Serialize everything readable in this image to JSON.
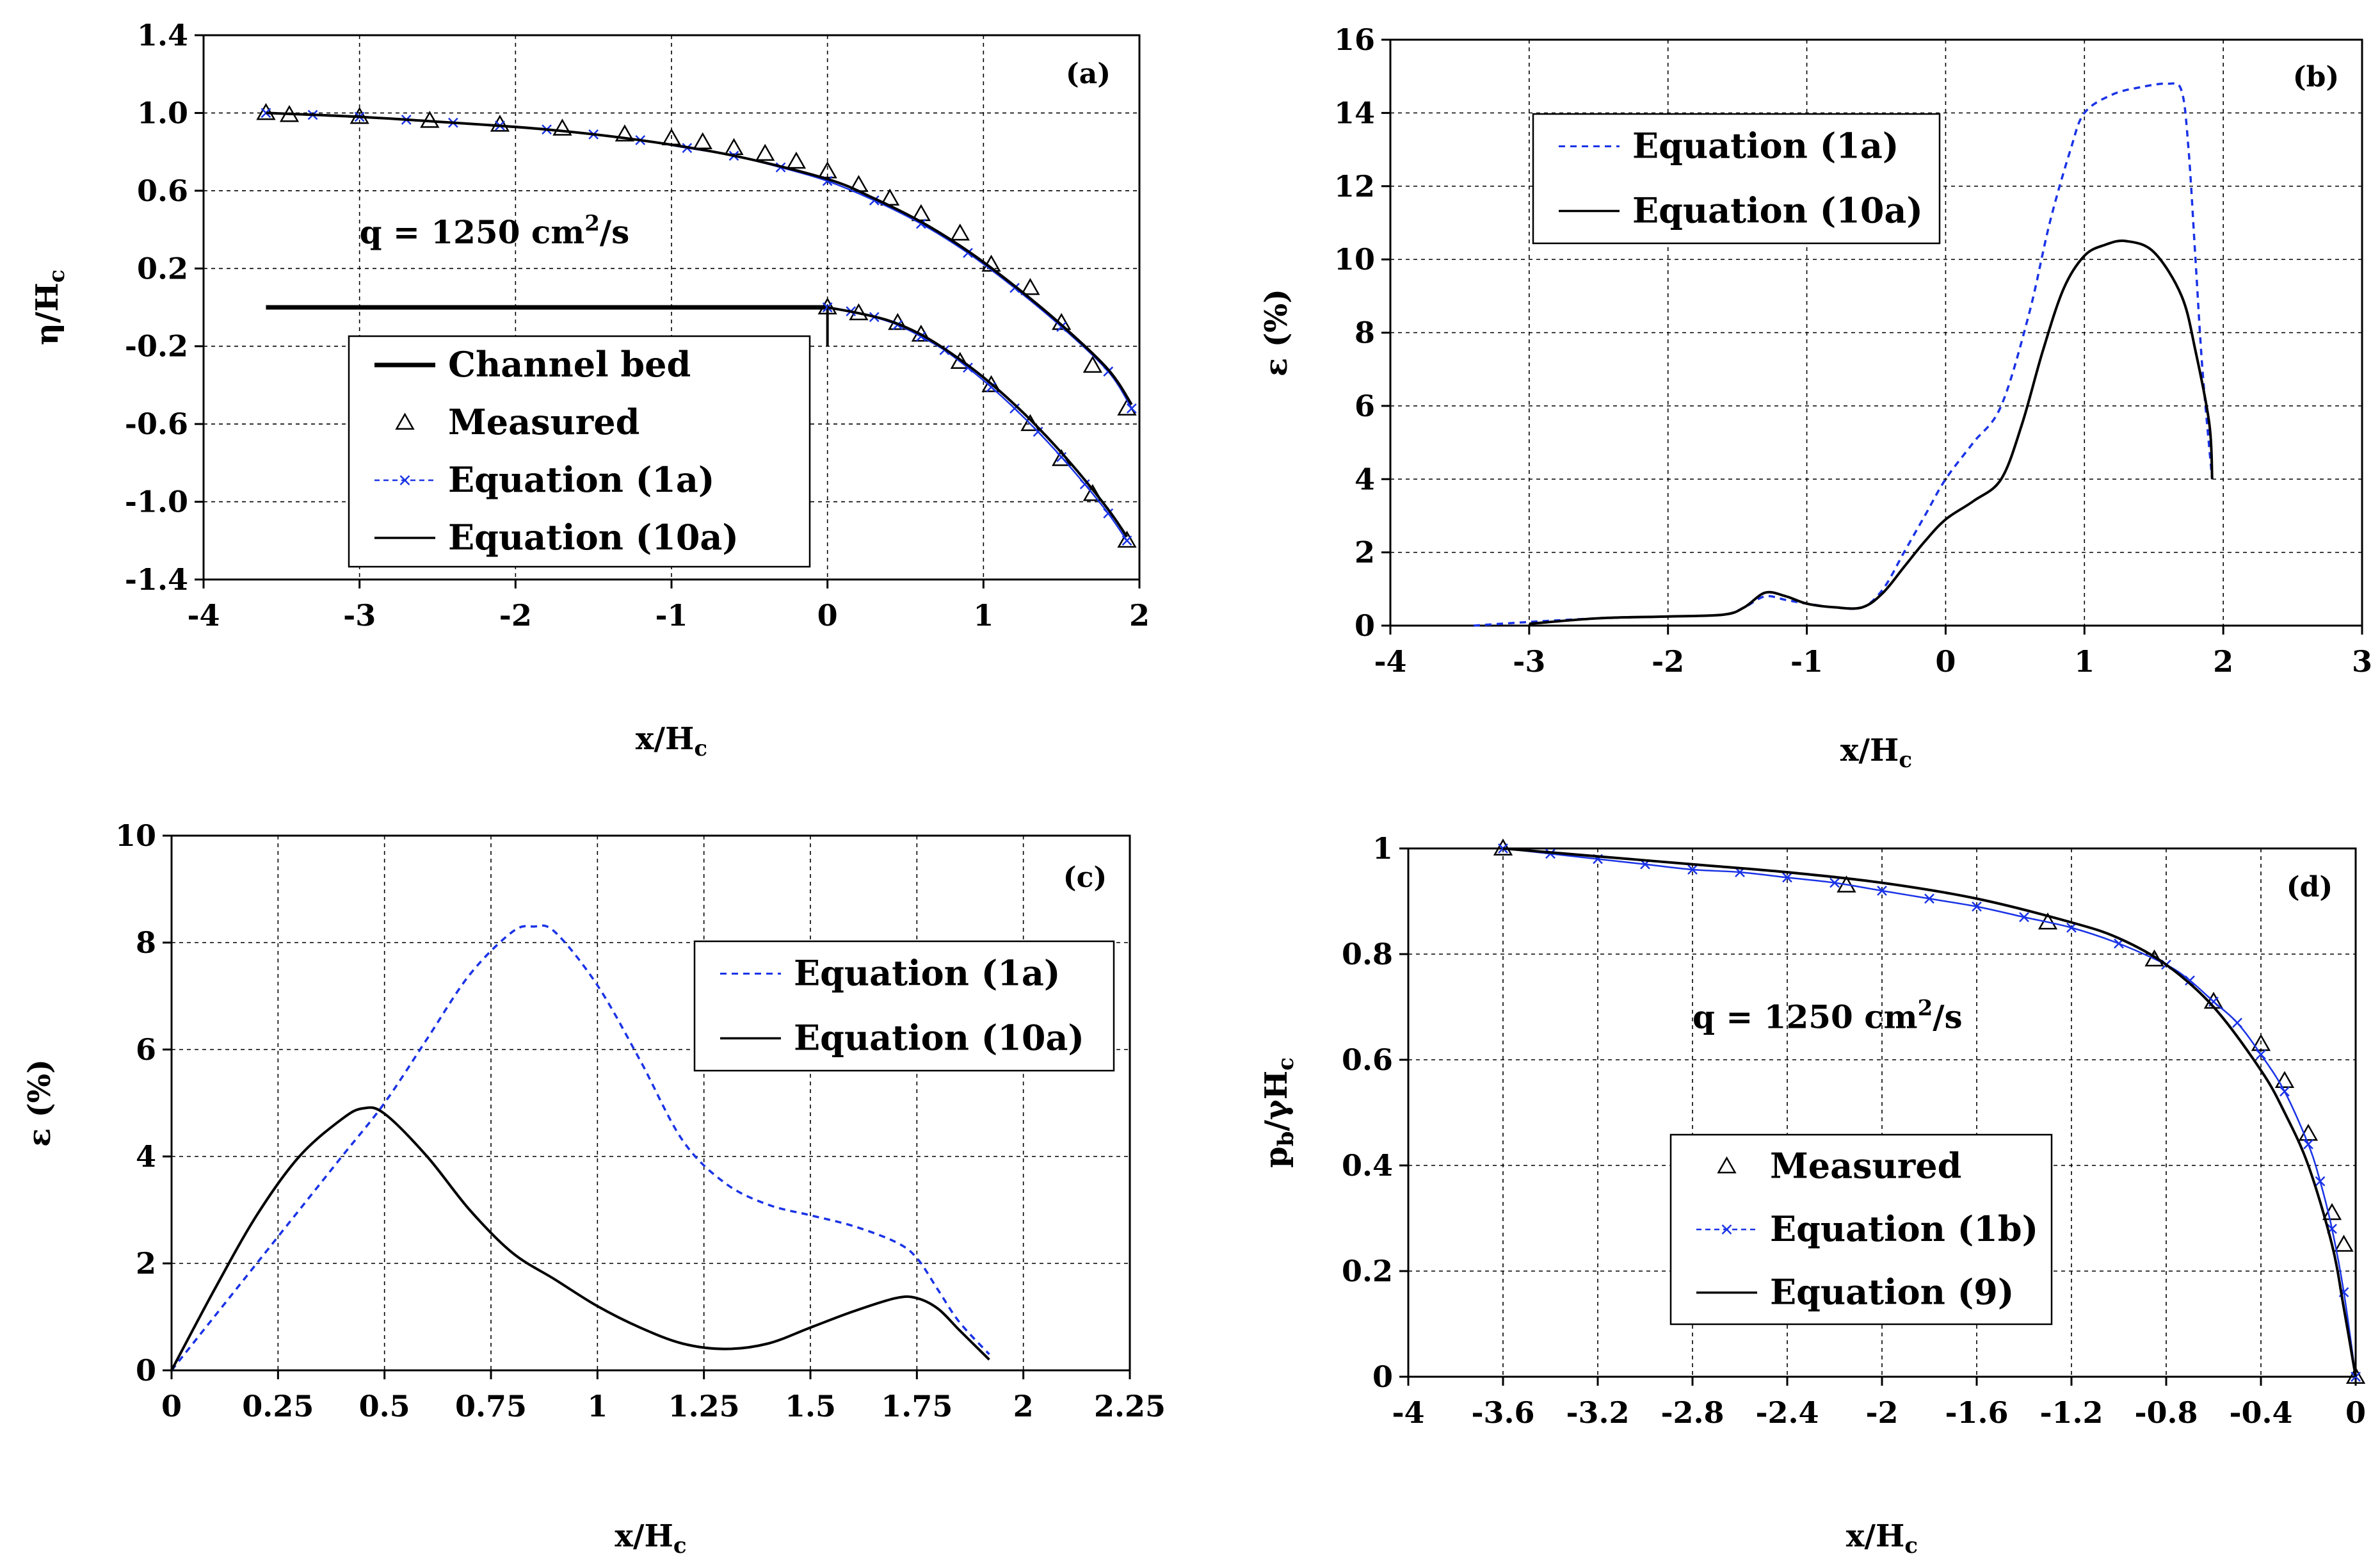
{
  "chart_data": [
    {
      "id": "a",
      "type": "line",
      "panel_label": "(a)",
      "xlabel": "x/H",
      "xlabel_sub": "c",
      "ylabel": "η/H",
      "ylabel_sub": "c",
      "xlim": [
        -4,
        2
      ],
      "ylim": [
        -1.4,
        1.4
      ],
      "xticks": [
        -4,
        -3,
        -2,
        -1,
        0,
        1,
        2
      ],
      "yticks": [
        -1.4,
        -1.0,
        -0.6,
        -0.2,
        0.2,
        0.6,
        1.0,
        1.4
      ],
      "ytick_labels": [
        "-1.4",
        "-1.0",
        "-0.6",
        "-0.2",
        "0.2",
        "0.6",
        "1.0",
        "1.4"
      ],
      "annotation": {
        "text": "q = 1250 cm",
        "sup": "2",
        "tail": "/s",
        "x": -3.0,
        "y": 0.33
      },
      "legend": [
        {
          "label": "Channel bed",
          "style": "bed"
        },
        {
          "label": "Measured",
          "style": "triangle"
        },
        {
          "label": "Equation (1a)",
          "style": "blue-x"
        },
        {
          "label": "Equation (10a)",
          "style": "black-line"
        }
      ],
      "series": [
        {
          "name": "Channel bed",
          "style": "bed",
          "x": [
            -3.6,
            0
          ],
          "y": [
            0,
            0
          ]
        },
        {
          "name": "Channel bed step",
          "style": "bed-thin",
          "x": [
            0,
            0
          ],
          "y": [
            0,
            -0.2
          ]
        },
        {
          "name": "Measured (upper nappe)",
          "style": "triangle",
          "x": [
            -3.6,
            -3.45,
            -3.0,
            -2.55,
            -2.1,
            -1.7,
            -1.3,
            -1.0,
            -0.8,
            -0.6,
            -0.4,
            -0.2,
            0.0,
            0.2,
            0.4,
            0.6,
            0.85,
            1.05,
            1.3,
            1.5,
            1.7,
            1.92
          ],
          "y": [
            1.0,
            0.99,
            0.98,
            0.96,
            0.94,
            0.92,
            0.89,
            0.87,
            0.85,
            0.82,
            0.79,
            0.75,
            0.7,
            0.63,
            0.56,
            0.48,
            0.38,
            0.22,
            0.1,
            -0.08,
            -0.3,
            -0.52
          ]
        },
        {
          "name": "Equation (1a) (upper nappe)",
          "style": "blue-x",
          "x": [
            -3.6,
            -3.3,
            -3.0,
            -2.7,
            -2.4,
            -2.1,
            -1.8,
            -1.5,
            -1.2,
            -0.9,
            -0.6,
            -0.3,
            0.0,
            0.3,
            0.6,
            0.9,
            1.2,
            1.5,
            1.8,
            1.95
          ],
          "y": [
            1.0,
            0.99,
            0.98,
            0.965,
            0.95,
            0.935,
            0.915,
            0.89,
            0.86,
            0.82,
            0.78,
            0.72,
            0.65,
            0.55,
            0.43,
            0.28,
            0.1,
            -0.1,
            -0.33,
            -0.52
          ]
        },
        {
          "name": "Equation (10a) (upper nappe)",
          "style": "black-line",
          "x": [
            -3.6,
            -3.0,
            -2.4,
            -1.8,
            -1.2,
            -0.6,
            0.0,
            0.3,
            0.6,
            0.9,
            1.2,
            1.5,
            1.8,
            1.95
          ],
          "y": [
            1.0,
            0.98,
            0.95,
            0.915,
            0.86,
            0.78,
            0.66,
            0.56,
            0.44,
            0.29,
            0.11,
            -0.09,
            -0.32,
            -0.5
          ]
        },
        {
          "name": "Measured (lower nappe)",
          "style": "triangle",
          "x": [
            0.0,
            0.2,
            0.45,
            0.6,
            0.85,
            1.05,
            1.3,
            1.5,
            1.7,
            1.92
          ],
          "y": [
            0.0,
            -0.03,
            -0.08,
            -0.14,
            -0.28,
            -0.4,
            -0.6,
            -0.78,
            -0.96,
            -1.2
          ]
        },
        {
          "name": "Equation (1a) (lower nappe)",
          "style": "blue-x",
          "x": [
            0.0,
            0.15,
            0.3,
            0.45,
            0.6,
            0.75,
            0.9,
            1.05,
            1.2,
            1.35,
            1.5,
            1.65,
            1.8,
            1.92
          ],
          "y": [
            0.0,
            -0.02,
            -0.05,
            -0.09,
            -0.15,
            -0.22,
            -0.31,
            -0.41,
            -0.52,
            -0.64,
            -0.77,
            -0.91,
            -1.06,
            -1.2
          ]
        },
        {
          "name": "Equation (10a) (lower nappe)",
          "style": "black-line",
          "x": [
            0.0,
            0.2,
            0.4,
            0.6,
            0.8,
            1.0,
            1.2,
            1.4,
            1.6,
            1.8,
            1.92
          ],
          "y": [
            0.0,
            -0.03,
            -0.07,
            -0.14,
            -0.24,
            -0.36,
            -0.5,
            -0.66,
            -0.84,
            -1.04,
            -1.18
          ]
        }
      ]
    },
    {
      "id": "b",
      "type": "line",
      "panel_label": "(b)",
      "xlabel": "x/H",
      "xlabel_sub": "c",
      "ylabel": "ε (%)",
      "xlim": [
        -4,
        3
      ],
      "ylim": [
        0,
        16
      ],
      "xticks": [
        -4,
        -3,
        -2,
        -1,
        0,
        1,
        2,
        3
      ],
      "yticks": [
        0,
        2,
        4,
        6,
        8,
        10,
        12,
        14,
        16
      ],
      "ytick_labels": [
        "0",
        "2",
        "4",
        "6",
        "8",
        "10",
        "12",
        "14",
        "16"
      ],
      "legend": [
        {
          "label": "Equation (1a)",
          "style": "blue-dash"
        },
        {
          "label": "Equation (10a)",
          "style": "black-line"
        }
      ],
      "series": [
        {
          "name": "Equation (1a)",
          "style": "blue-dash",
          "x": [
            -3.4,
            -3.0,
            -2.5,
            -2.0,
            -1.6,
            -1.45,
            -1.3,
            -1.15,
            -1.0,
            -0.8,
            -0.6,
            -0.45,
            -0.3,
            -0.15,
            0.0,
            0.2,
            0.4,
            0.6,
            0.75,
            0.9,
            1.0,
            1.2,
            1.4,
            1.6,
            1.7,
            1.75,
            1.8,
            1.85,
            1.92
          ],
          "y": [
            0.0,
            0.1,
            0.2,
            0.25,
            0.3,
            0.5,
            0.8,
            0.7,
            0.6,
            0.5,
            0.5,
            1.0,
            2.0,
            3.0,
            4.0,
            5.0,
            6.0,
            8.5,
            11.0,
            13.0,
            14.0,
            14.5,
            14.7,
            14.8,
            14.6,
            13.0,
            10.0,
            7.0,
            4.0
          ]
        },
        {
          "name": "Equation (10a)",
          "style": "black-line",
          "x": [
            -3.0,
            -2.5,
            -2.0,
            -1.6,
            -1.45,
            -1.3,
            -1.15,
            -1.0,
            -0.8,
            -0.6,
            -0.45,
            -0.3,
            -0.15,
            0.0,
            0.2,
            0.4,
            0.55,
            0.7,
            0.85,
            1.0,
            1.15,
            1.3,
            1.5,
            1.7,
            1.8,
            1.9,
            1.92
          ],
          "y": [
            0.05,
            0.2,
            0.25,
            0.3,
            0.5,
            0.9,
            0.8,
            0.6,
            0.5,
            0.5,
            0.9,
            1.6,
            2.3,
            2.9,
            3.4,
            4.0,
            5.5,
            7.5,
            9.2,
            10.1,
            10.4,
            10.5,
            10.2,
            9.0,
            7.5,
            5.5,
            4.0
          ]
        }
      ]
    },
    {
      "id": "c",
      "type": "line",
      "panel_label": "(c)",
      "xlabel": "x/H",
      "xlabel_sub": "c",
      "ylabel": "ε (%)",
      "xlim": [
        0,
        2.25
      ],
      "ylim": [
        0,
        10
      ],
      "xticks": [
        0,
        0.25,
        0.5,
        0.75,
        1,
        1.25,
        1.5,
        1.75,
        2,
        2.25
      ],
      "xtick_labels": [
        "0",
        "0.25",
        "0.5",
        "0.75",
        "1",
        "1.25",
        "1.5",
        "1.75",
        "2",
        "2.25"
      ],
      "yticks": [
        0,
        2,
        4,
        6,
        8,
        10
      ],
      "ytick_labels": [
        "0",
        "2",
        "4",
        "6",
        "8",
        "10"
      ],
      "legend": [
        {
          "label": "Equation (1a)",
          "style": "blue-dash"
        },
        {
          "label": "Equation (10a)",
          "style": "black-line"
        }
      ],
      "series": [
        {
          "name": "Equation (1a)",
          "style": "blue-dash",
          "x": [
            0.0,
            0.1,
            0.2,
            0.3,
            0.4,
            0.5,
            0.6,
            0.7,
            0.8,
            0.85,
            0.9,
            1.0,
            1.1,
            1.2,
            1.3,
            1.4,
            1.5,
            1.6,
            1.7,
            1.75,
            1.8,
            1.85,
            1.92
          ],
          "y": [
            0.0,
            1.0,
            2.0,
            3.0,
            4.0,
            5.0,
            6.2,
            7.4,
            8.2,
            8.3,
            8.2,
            7.2,
            5.8,
            4.3,
            3.5,
            3.1,
            2.9,
            2.7,
            2.4,
            2.1,
            1.5,
            0.9,
            0.3
          ]
        },
        {
          "name": "Equation (10a)",
          "style": "black-line",
          "x": [
            0.0,
            0.1,
            0.2,
            0.3,
            0.4,
            0.45,
            0.5,
            0.6,
            0.7,
            0.8,
            0.9,
            1.0,
            1.1,
            1.2,
            1.3,
            1.4,
            1.5,
            1.6,
            1.7,
            1.75,
            1.8,
            1.85,
            1.92
          ],
          "y": [
            0.0,
            1.5,
            2.9,
            4.0,
            4.7,
            4.9,
            4.8,
            4.0,
            3.0,
            2.2,
            1.7,
            1.2,
            0.8,
            0.5,
            0.4,
            0.5,
            0.8,
            1.1,
            1.35,
            1.35,
            1.15,
            0.75,
            0.2
          ]
        }
      ]
    },
    {
      "id": "d",
      "type": "line",
      "panel_label": "(d)",
      "xlabel": "x/H",
      "xlabel_sub": "c",
      "ylabel": "p",
      "ylabel_sub": "b",
      "ylabel_tail": "/γH",
      "ylabel_sub2": "c",
      "xlim": [
        -4,
        0
      ],
      "ylim": [
        0,
        1
      ],
      "xticks": [
        -4,
        -3.6,
        -3.2,
        -2.8,
        -2.4,
        -2,
        -1.6,
        -1.2,
        -0.8,
        -0.4,
        0
      ],
      "xtick_labels": [
        "-4",
        "-3.6",
        "-3.2",
        "-2.8",
        "-2.4",
        "-2",
        "-1.6",
        "-1.2",
        "-0.8",
        "-0.4",
        "0"
      ],
      "yticks": [
        0,
        0.2,
        0.4,
        0.6,
        0.8,
        1
      ],
      "ytick_labels": [
        "0",
        "0.2",
        "0.4",
        "0.6",
        "0.8",
        "1"
      ],
      "annotation": {
        "text": "q = 1250 cm",
        "sup": "2",
        "tail": "/s",
        "x": -2.8,
        "y": 0.66
      },
      "legend": [
        {
          "label": "Measured",
          "style": "triangle"
        },
        {
          "label": "Equation (1b)",
          "style": "blue-x"
        },
        {
          "label": "Equation (9)",
          "style": "black-line"
        }
      ],
      "series": [
        {
          "name": "Measured",
          "style": "triangle",
          "x": [
            -3.6,
            -2.15,
            -1.3,
            -0.85,
            -0.6,
            -0.4,
            -0.3,
            -0.2,
            -0.1,
            -0.05,
            0.0
          ],
          "y": [
            1.0,
            0.93,
            0.86,
            0.79,
            0.71,
            0.63,
            0.56,
            0.46,
            0.31,
            0.25,
            0.0
          ]
        },
        {
          "name": "Equation (1b)",
          "style": "blue-x",
          "x": [
            -3.6,
            -3.4,
            -3.2,
            -3.0,
            -2.8,
            -2.6,
            -2.4,
            -2.2,
            -2.0,
            -1.8,
            -1.6,
            -1.4,
            -1.2,
            -1.0,
            -0.8,
            -0.7,
            -0.6,
            -0.5,
            -0.4,
            -0.3,
            -0.2,
            -0.15,
            -0.1,
            -0.05,
            0.0
          ],
          "y": [
            1.0,
            0.99,
            0.98,
            0.97,
            0.96,
            0.955,
            0.945,
            0.935,
            0.92,
            0.905,
            0.89,
            0.87,
            0.85,
            0.82,
            0.78,
            0.75,
            0.71,
            0.67,
            0.61,
            0.54,
            0.44,
            0.37,
            0.28,
            0.16,
            0.0
          ]
        },
        {
          "name": "Equation (9)",
          "style": "black-line",
          "x": [
            -3.6,
            -3.2,
            -2.8,
            -2.4,
            -2.0,
            -1.6,
            -1.2,
            -1.0,
            -0.8,
            -0.6,
            -0.4,
            -0.3,
            -0.2,
            -0.1,
            -0.05,
            0.0
          ],
          "y": [
            1.0,
            0.985,
            0.97,
            0.955,
            0.935,
            0.905,
            0.86,
            0.83,
            0.78,
            0.7,
            0.58,
            0.5,
            0.4,
            0.25,
            0.13,
            0.0
          ]
        }
      ]
    }
  ]
}
